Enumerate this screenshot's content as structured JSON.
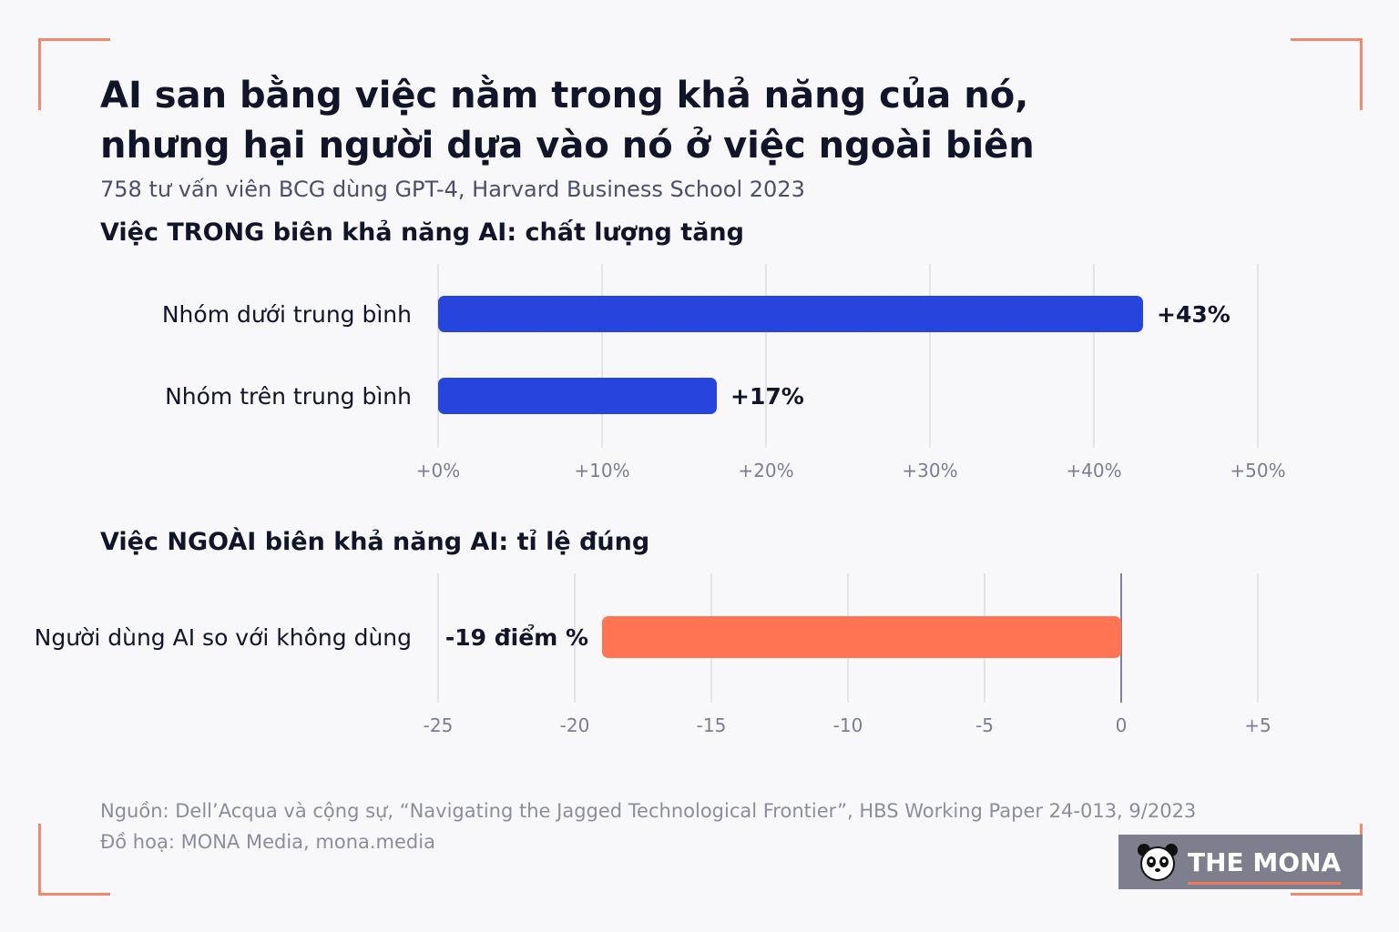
{
  "title_lines": [
    "AI san bằng việc nằm trong khả năng của nó,",
    "nhưng hại người dựa vào nó ở việc ngoài biên"
  ],
  "subtitle": "758 tư vấn viên BCG dùng GPT-4, Harvard Business School 2023",
  "footer": {
    "source": "Nguồn: Dell’Acqua và cộng sự, “Navigating the Jagged Technological Frontier”, HBS Working Paper 24-013, 9/2023",
    "credit": "Đồ hoạ: MONA Media, mona.media"
  },
  "logo": {
    "text": "THE MONA",
    "icon": "panda-icon"
  },
  "colors": {
    "blue": "#2645dd",
    "orange": "#ff7453",
    "accent": "#ee8a6e"
  },
  "chart_data": [
    {
      "type": "bar",
      "orientation": "horizontal",
      "title": "Việc TRONG biên khả năng AI: chất lượng tăng",
      "categories": [
        "Nhóm dưới trung bình",
        "Nhóm trên trung bình"
      ],
      "values": [
        43,
        17
      ],
      "value_labels": [
        "+43%",
        "+17%"
      ],
      "xlim": [
        0,
        50
      ],
      "ticks": [
        0,
        10,
        20,
        30,
        40,
        50
      ],
      "tick_labels": [
        "+0%",
        "+10%",
        "+20%",
        "+30%",
        "+40%",
        "+50%"
      ],
      "grid": true,
      "color": "#2645dd"
    },
    {
      "type": "bar",
      "orientation": "horizontal",
      "title": "Việc NGOÀI biên khả năng AI: tỉ lệ đúng",
      "categories": [
        "Người dùng AI so với không dùng"
      ],
      "values": [
        -19
      ],
      "value_labels": [
        "-19 điểm %"
      ],
      "xlim": [
        -25,
        5
      ],
      "ticks": [
        -25,
        -20,
        -15,
        -10,
        -5,
        0,
        5
      ],
      "tick_labels": [
        "-25",
        "-20",
        "-15",
        "-10",
        "-5",
        "0",
        "+5"
      ],
      "grid": true,
      "color": "#ff7453"
    }
  ]
}
